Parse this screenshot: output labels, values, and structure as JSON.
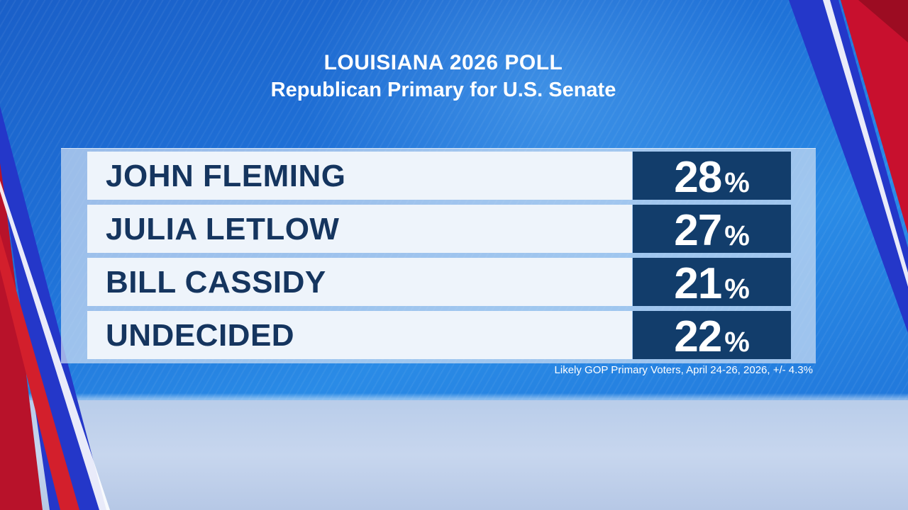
{
  "header": {
    "title": "LOUISIANA 2026 POLL",
    "subtitle": "Republican Primary for U.S. Senate"
  },
  "colors": {
    "background_blue": "#1f72d8",
    "name_cell": "#eef4fb",
    "name_text": "#15355f",
    "value_cell": "#123d6b",
    "value_text": "#ffffff",
    "accent_red": "#c8102e"
  },
  "chart_data": {
    "type": "table",
    "title": "LOUISIANA 2026 POLL",
    "subtitle": "Republican Primary for U.S. Senate",
    "unit": "%",
    "categories": [
      "JOHN FLEMING",
      "JULIA LETLOW",
      "BILL CASSIDY",
      "UNDECIDED"
    ],
    "values": [
      28,
      27,
      21,
      22
    ],
    "rows": [
      {
        "name": "JOHN FLEMING",
        "value": "28",
        "unit": "%"
      },
      {
        "name": "JULIA LETLOW",
        "value": "27",
        "unit": "%"
      },
      {
        "name": "BILL CASSIDY",
        "value": "21",
        "unit": "%"
      },
      {
        "name": "UNDECIDED",
        "value": "22",
        "unit": "%"
      }
    ],
    "footnote": "Likely GOP Primary Voters, April 24-26, 2026, +/- 4.3%"
  }
}
